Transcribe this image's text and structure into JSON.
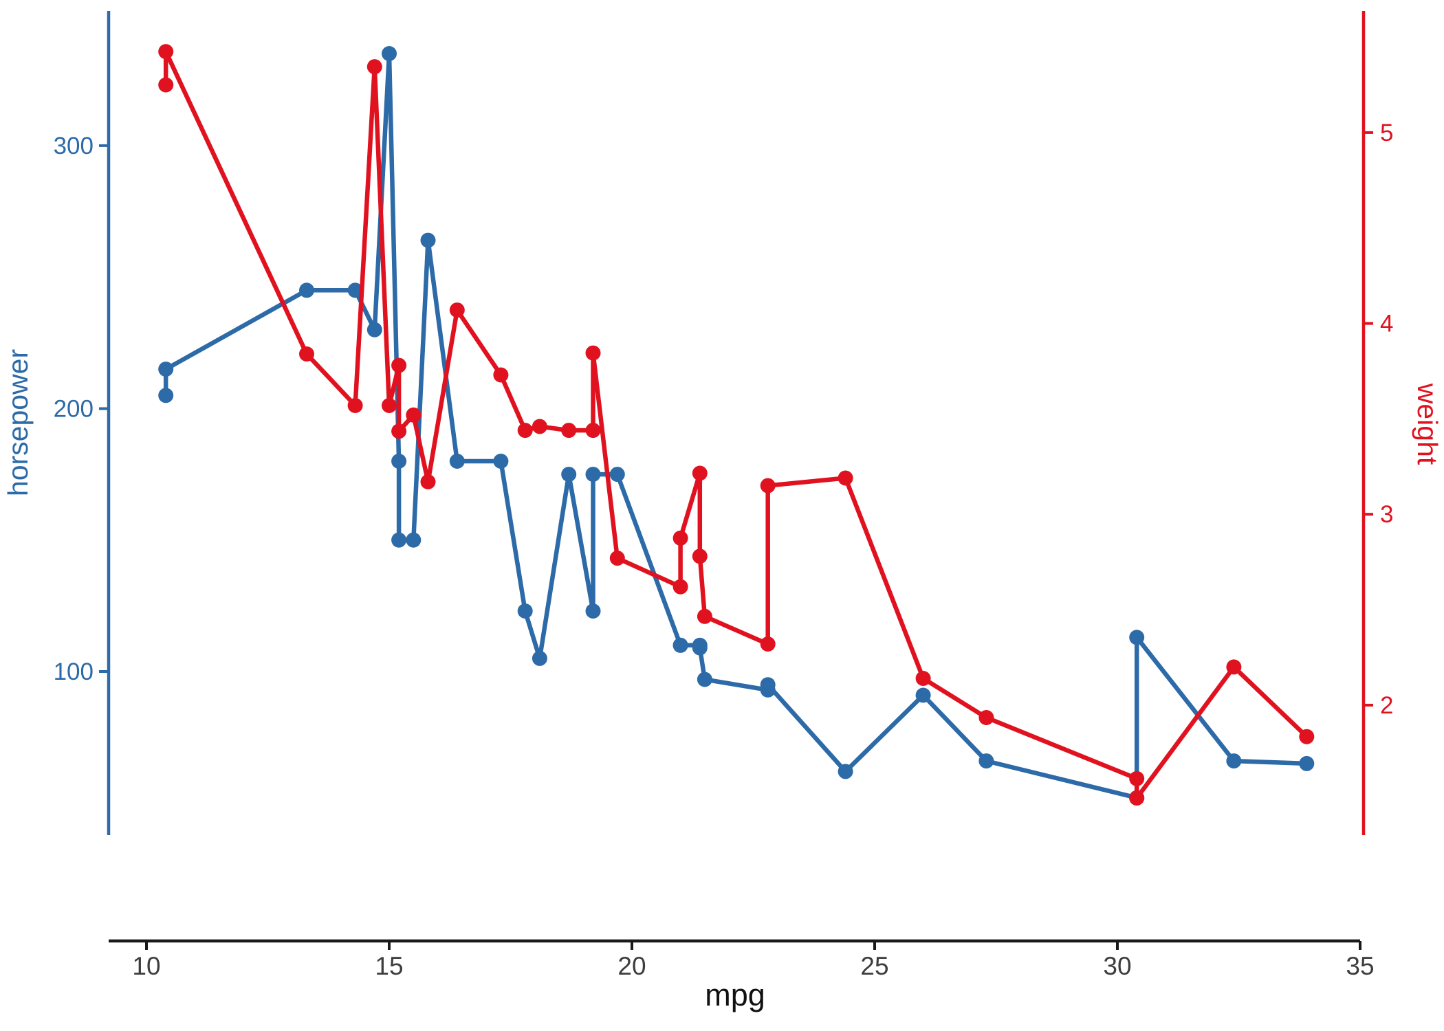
{
  "chart_data": {
    "type": "line",
    "title": "",
    "xlabel": "mpg",
    "ylabel_left": "horsepower",
    "ylabel_right": "weight",
    "grid": "off",
    "legend": "none",
    "x_ticks": [
      10,
      15,
      20,
      25,
      30,
      35
    ],
    "y_left_ticks": [
      100,
      200,
      300
    ],
    "y_right_ticks": [
      2,
      3,
      4,
      5
    ],
    "x_range": [
      9.221,
      35.071
    ],
    "y_left_range": [
      37.8,
      351.2
    ],
    "y_right_range": [
      1.319,
      5.637
    ],
    "colors": {
      "left_series": "#2c6aa8",
      "right_series": "#e1121f",
      "x_axis_line": "#1a1a1a",
      "x_tick_label": "#3d3d3d",
      "x_axis_title": "#111111"
    },
    "series": [
      {
        "name": "horsepower",
        "axis": "left",
        "color": "#2c6aa8",
        "points": [
          [
            10.4,
            205
          ],
          [
            10.4,
            215
          ],
          [
            13.3,
            245
          ],
          [
            14.3,
            245
          ],
          [
            14.7,
            230
          ],
          [
            15.0,
            335
          ],
          [
            15.2,
            180
          ],
          [
            15.2,
            150
          ],
          [
            15.5,
            150
          ],
          [
            15.8,
            264
          ],
          [
            16.4,
            180
          ],
          [
            17.3,
            180
          ],
          [
            17.8,
            123
          ],
          [
            18.1,
            105
          ],
          [
            18.7,
            175
          ],
          [
            19.2,
            123
          ],
          [
            19.2,
            175
          ],
          [
            19.7,
            175
          ],
          [
            21.0,
            110
          ],
          [
            21.0,
            110
          ],
          [
            21.4,
            110
          ],
          [
            21.4,
            109
          ],
          [
            21.5,
            97
          ],
          [
            22.8,
            93
          ],
          [
            22.8,
            95
          ],
          [
            24.4,
            62
          ],
          [
            26.0,
            91
          ],
          [
            27.3,
            66
          ],
          [
            30.4,
            52
          ],
          [
            30.4,
            113
          ],
          [
            32.4,
            66
          ],
          [
            33.9,
            65
          ]
        ]
      },
      {
        "name": "weight",
        "axis": "right",
        "color": "#e1121f",
        "points": [
          [
            10.4,
            5.25
          ],
          [
            10.4,
            5.424
          ],
          [
            13.3,
            3.84
          ],
          [
            14.3,
            3.57
          ],
          [
            14.7,
            5.345
          ],
          [
            15.0,
            3.57
          ],
          [
            15.2,
            3.78
          ],
          [
            15.2,
            3.435
          ],
          [
            15.5,
            3.52
          ],
          [
            15.8,
            3.17
          ],
          [
            16.4,
            4.07
          ],
          [
            17.3,
            3.73
          ],
          [
            17.8,
            3.44
          ],
          [
            18.1,
            3.46
          ],
          [
            18.7,
            3.44
          ],
          [
            19.2,
            3.44
          ],
          [
            19.2,
            3.845
          ],
          [
            19.7,
            2.77
          ],
          [
            21.0,
            2.62
          ],
          [
            21.0,
            2.875
          ],
          [
            21.4,
            3.215
          ],
          [
            21.4,
            2.78
          ],
          [
            21.5,
            2.465
          ],
          [
            22.8,
            2.32
          ],
          [
            22.8,
            3.15
          ],
          [
            24.4,
            3.19
          ],
          [
            26.0,
            2.14
          ],
          [
            27.3,
            1.935
          ],
          [
            30.4,
            1.615
          ],
          [
            30.4,
            1.513
          ],
          [
            32.4,
            2.2
          ],
          [
            33.9,
            1.835
          ]
        ]
      }
    ]
  }
}
